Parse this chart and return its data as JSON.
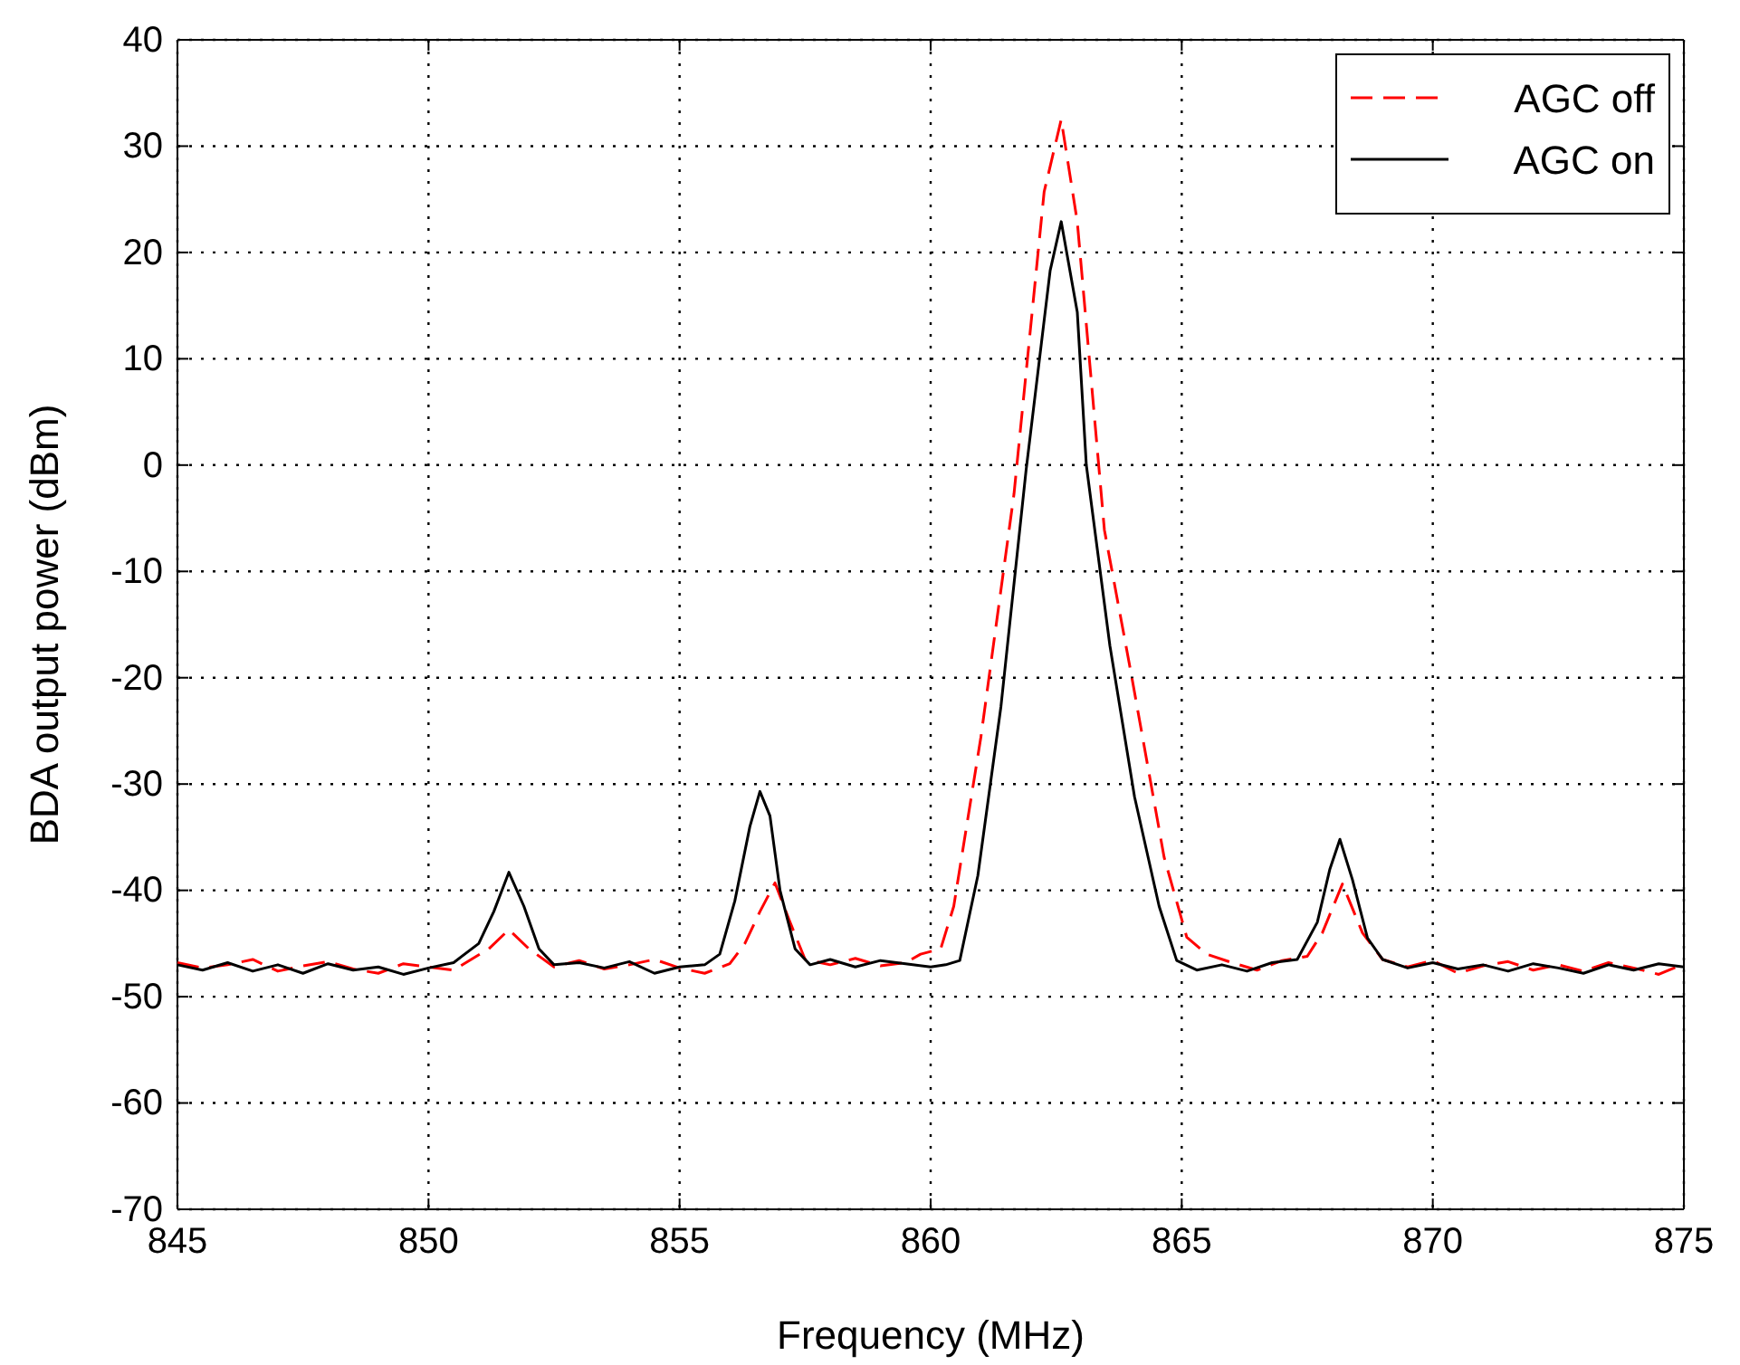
{
  "chart_data": {
    "type": "line",
    "xlabel": "Frequency (MHz)",
    "ylabel": "BDA output power (dBm)",
    "xlim": [
      845,
      875
    ],
    "xticks": [
      845,
      850,
      855,
      860,
      865,
      870,
      875
    ],
    "ylim": [
      -70,
      40
    ],
    "yticks": [
      -70,
      -60,
      -50,
      -40,
      -30,
      -20,
      -10,
      0,
      10,
      20,
      30,
      40
    ],
    "grid": true,
    "legend": "top right",
    "series": [
      {
        "name": "AGC off",
        "color": "#ff0000",
        "line_style": "dashed",
        "x": [
          845,
          845.5,
          846,
          846.5,
          847,
          847.5,
          848,
          848.5,
          849,
          849.5,
          850,
          850.5,
          851.2,
          851.6,
          852.0,
          852.5,
          853,
          853.5,
          854,
          854.5,
          855,
          855.5,
          856,
          856.3,
          856.6,
          856.9,
          857.2,
          857.5,
          858,
          858.5,
          859,
          859.5,
          859.8,
          860.2,
          860.46,
          861.0,
          861.66,
          862.26,
          862.6,
          862.92,
          863.46,
          864.0,
          864.65,
          865.1,
          865.5,
          866,
          866.5,
          867,
          867.5,
          867.8,
          868.2,
          868.6,
          869,
          869.5,
          870,
          870.5,
          871,
          871.5,
          872,
          872.5,
          873,
          873.5,
          874,
          874.5,
          875
        ],
        "values": [
          -46.8,
          -47.3,
          -47,
          -46.5,
          -47.6,
          -47.1,
          -46.7,
          -47.4,
          -47.8,
          -46.9,
          -47.2,
          -47.5,
          -45.5,
          -43.7,
          -45.5,
          -47.2,
          -46.6,
          -47.4,
          -47,
          -46.5,
          -47.3,
          -47.8,
          -46.9,
          -45,
          -42,
          -39.3,
          -43,
          -46.5,
          -47,
          -46.4,
          -47.1,
          -46.8,
          -46,
          -45.5,
          -41.5,
          -25.6,
          -2.7,
          25.7,
          32.5,
          22.9,
          -6.1,
          -19.8,
          -36.9,
          -44.4,
          -46,
          -46.8,
          -47.5,
          -46.6,
          -46.2,
          -44,
          -39.4,
          -44,
          -46.5,
          -47.2,
          -46.6,
          -47.8,
          -47.1,
          -46.7,
          -47.5,
          -47,
          -47.6,
          -46.8,
          -47.3,
          -47.9,
          -46.9
        ]
      },
      {
        "name": "AGC on",
        "color": "#000000",
        "line_style": "solid",
        "x": [
          845,
          845.5,
          846,
          846.5,
          847,
          847.5,
          848,
          848.5,
          849,
          849.5,
          850,
          850.5,
          851,
          851.3,
          851.6,
          851.9,
          852.2,
          852.5,
          853,
          853.5,
          854,
          854.5,
          855,
          855.5,
          855.8,
          856.1,
          856.4,
          856.6,
          856.8,
          857,
          857.3,
          857.6,
          858,
          858.5,
          859,
          859.5,
          860,
          860.3,
          860.58,
          860.94,
          861.4,
          861.9,
          862.38,
          862.6,
          862.92,
          863.1,
          863.57,
          864.06,
          864.55,
          864.9,
          865.3,
          865.8,
          866.3,
          866.8,
          867.3,
          867.7,
          867.95,
          868.15,
          868.4,
          868.7,
          869,
          869.5,
          870,
          870.5,
          871,
          871.5,
          872,
          872.5,
          873,
          873.5,
          874,
          874.5,
          875
        ],
        "values": [
          -47,
          -47.5,
          -46.8,
          -47.6,
          -47,
          -47.8,
          -46.9,
          -47.5,
          -47.2,
          -47.9,
          -47.3,
          -46.8,
          -45,
          -42,
          -38.3,
          -41.5,
          -45.5,
          -47,
          -46.8,
          -47.3,
          -46.7,
          -47.8,
          -47.2,
          -47,
          -46,
          -41,
          -34,
          -30.7,
          -33,
          -40,
          -45.5,
          -47,
          -46.5,
          -47.2,
          -46.6,
          -46.9,
          -47.2,
          -47,
          -46.6,
          -38.6,
          -22.7,
          -0.5,
          18.3,
          22.9,
          14.4,
          0,
          -17,
          -31.2,
          -41.5,
          -46.6,
          -47.5,
          -47,
          -47.6,
          -46.8,
          -46.5,
          -43,
          -38,
          -35.2,
          -39,
          -44.5,
          -46.5,
          -47.3,
          -46.8,
          -47.4,
          -47,
          -47.6,
          -46.9,
          -47.3,
          -47.8,
          -47,
          -47.5,
          -46.9,
          -47.2
        ]
      }
    ]
  }
}
